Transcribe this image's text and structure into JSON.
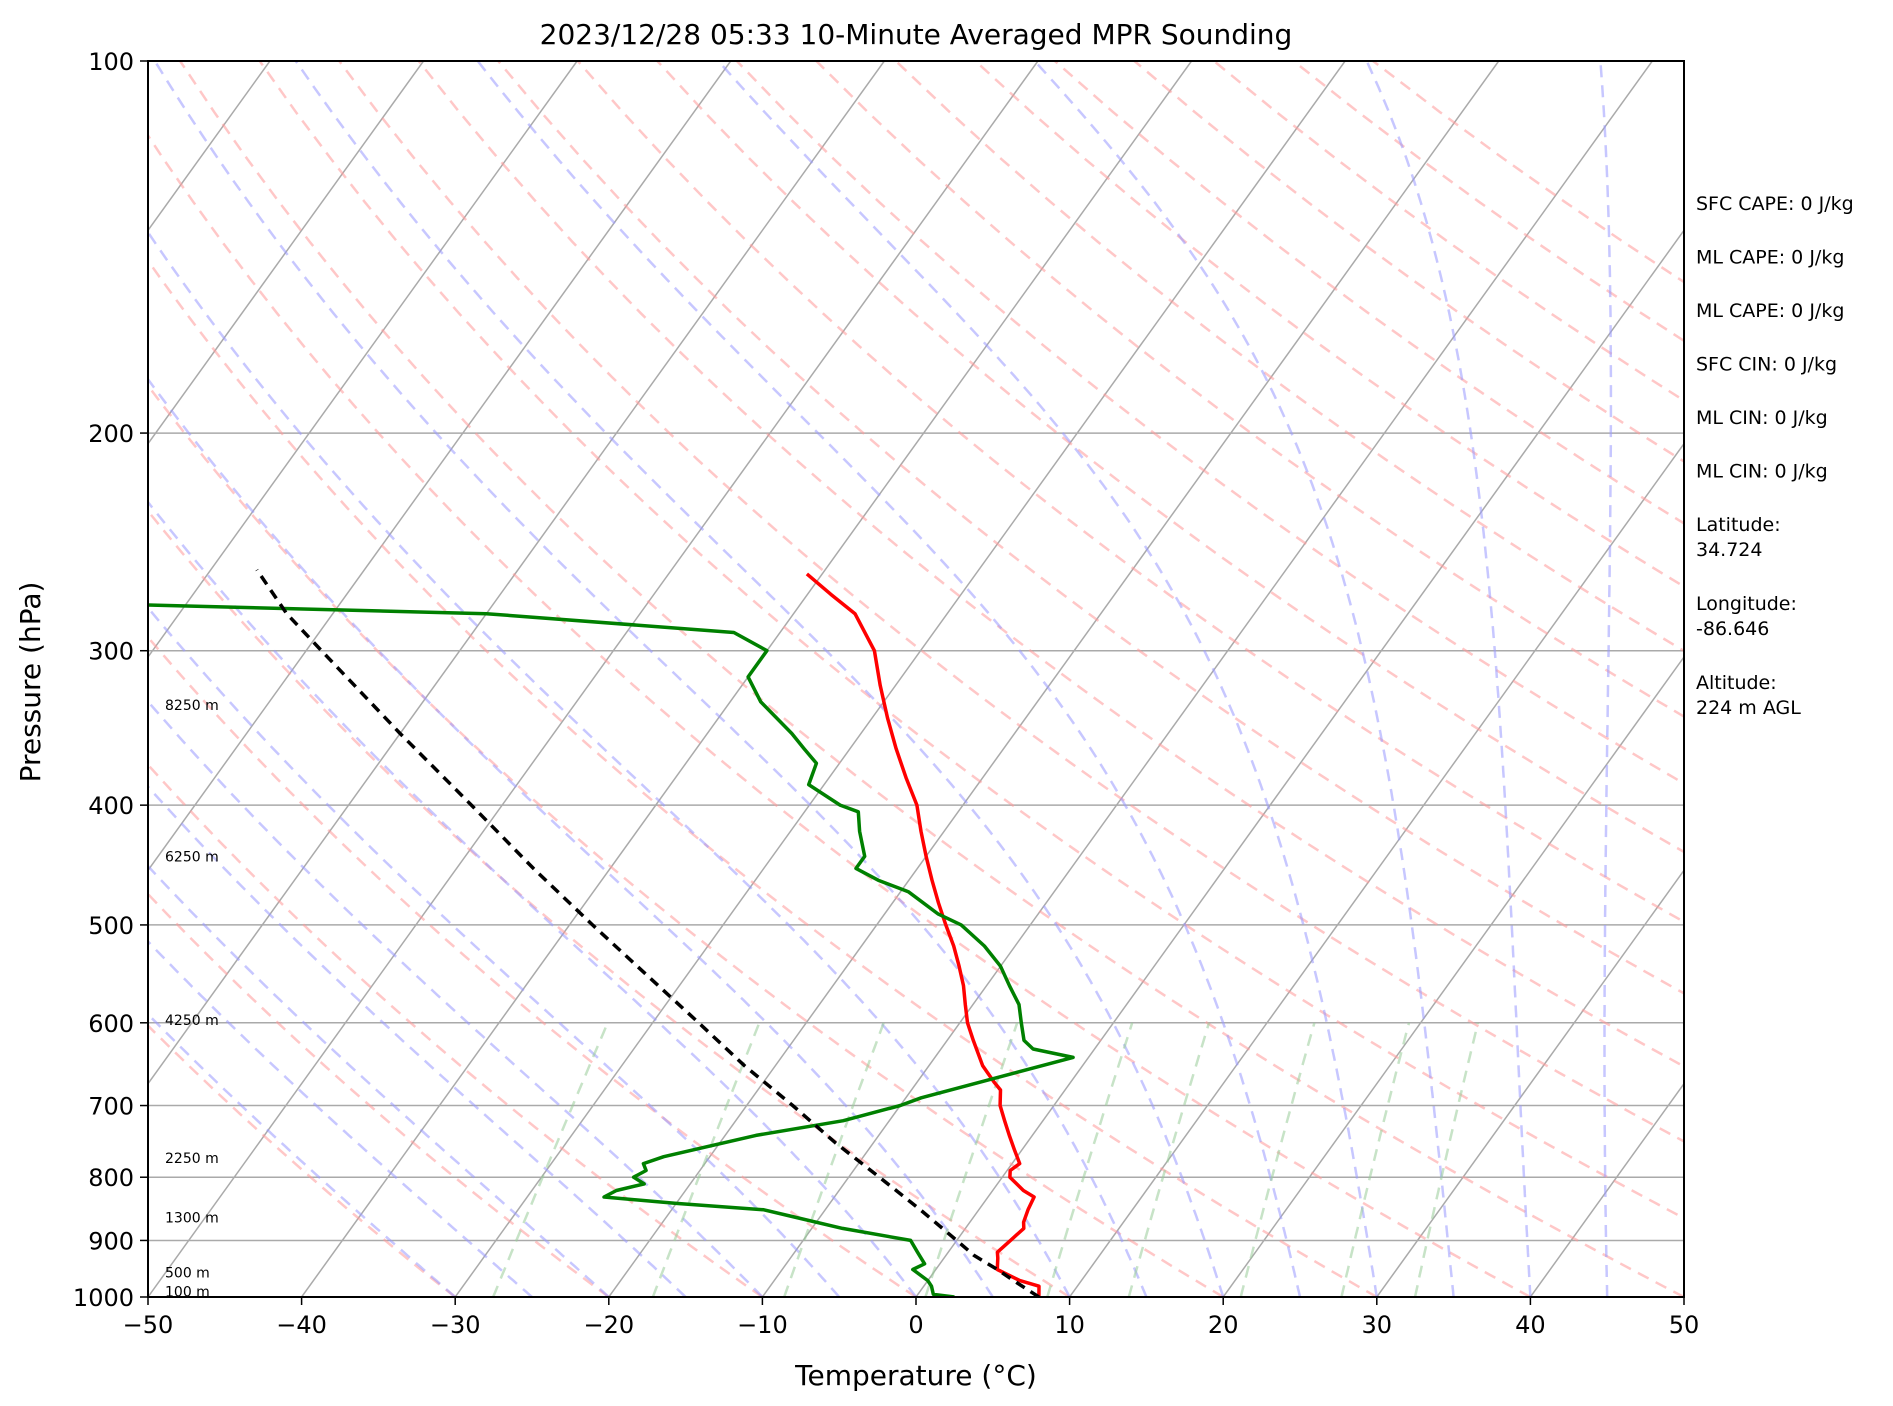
{
  "chart_data": {
    "type": "line",
    "title": "2023/12/28 05:33 10-Minute Averaged MPR Sounding",
    "xlabel": "Temperature (°C)",
    "ylabel": "Pressure (hPa)",
    "xlim": [
      -50,
      50
    ],
    "ylim": [
      1000,
      100
    ],
    "yscale": "log",
    "skew": "skew-T log-p",
    "grid": true,
    "x_ticks": [
      -50,
      -40,
      -30,
      -20,
      -10,
      0,
      10,
      20,
      30,
      40,
      50
    ],
    "y_ticks": [
      100,
      200,
      300,
      400,
      500,
      600,
      700,
      800,
      900,
      1000
    ],
    "colors": {
      "temperature": "#ff0000",
      "dewpoint": "#008000",
      "parcel": "#000000",
      "isotherms": "#aaaaaa",
      "dry_adiabats": "#ff9999",
      "moist_adiabats": "#9999ff",
      "mixing_ratio": "#99cc99"
    },
    "series": [
      {
        "key": "temperature",
        "points": [
          [
            1000,
            8.0
          ],
          [
            980,
            7.5
          ],
          [
            970,
            6.0
          ],
          [
            950,
            4.0
          ],
          [
            930,
            3.5
          ],
          [
            920,
            3.2
          ],
          [
            900,
            3.5
          ],
          [
            880,
            3.8
          ],
          [
            870,
            3.5
          ],
          [
            850,
            3.2
          ],
          [
            830,
            3.0
          ],
          [
            820,
            2.0
          ],
          [
            800,
            0.5
          ],
          [
            790,
            0.2
          ],
          [
            780,
            0.5
          ],
          [
            760,
            -0.5
          ],
          [
            740,
            -1.5
          ],
          [
            720,
            -2.5
          ],
          [
            700,
            -3.5
          ],
          [
            680,
            -4.2
          ],
          [
            670,
            -5.0
          ],
          [
            650,
            -6.5
          ],
          [
            620,
            -8.3
          ],
          [
            600,
            -9.5
          ],
          [
            580,
            -10.5
          ],
          [
            560,
            -11.5
          ],
          [
            540,
            -12.7
          ],
          [
            520,
            -14.0
          ],
          [
            500,
            -15.5
          ],
          [
            480,
            -17.0
          ],
          [
            460,
            -18.5
          ],
          [
            440,
            -20.0
          ],
          [
            420,
            -21.5
          ],
          [
            400,
            -23.0
          ],
          [
            380,
            -25.0
          ],
          [
            360,
            -27.0
          ],
          [
            340,
            -29.0
          ],
          [
            320,
            -31.0
          ],
          [
            300,
            -33.0
          ],
          [
            280,
            -36.0
          ],
          [
            270,
            -38.5
          ],
          [
            260,
            -41.0
          ]
        ]
      },
      {
        "key": "dewpoint",
        "points": [
          [
            1000,
            2.5
          ],
          [
            995,
            1.0
          ],
          [
            980,
            0.5
          ],
          [
            970,
            0.0
          ],
          [
            950,
            -1.5
          ],
          [
            940,
            -1.0
          ],
          [
            920,
            -2.0
          ],
          [
            900,
            -3.0
          ],
          [
            880,
            -8.0
          ],
          [
            860,
            -12.0
          ],
          [
            850,
            -14.0
          ],
          [
            840,
            -20.0
          ],
          [
            830,
            -25.0
          ],
          [
            820,
            -24.5
          ],
          [
            810,
            -23.0
          ],
          [
            800,
            -24.0
          ],
          [
            790,
            -23.5
          ],
          [
            780,
            -24.0
          ],
          [
            770,
            -23.0
          ],
          [
            740,
            -18.0
          ],
          [
            720,
            -13.0
          ],
          [
            700,
            -10.0
          ],
          [
            690,
            -9.0
          ],
          [
            640,
            -1.0
          ],
          [
            630,
            -4.0
          ],
          [
            620,
            -5.0
          ],
          [
            600,
            -6.0
          ],
          [
            580,
            -7.0
          ],
          [
            560,
            -8.5
          ],
          [
            540,
            -10.0
          ],
          [
            520,
            -12.0
          ],
          [
            500,
            -14.5
          ],
          [
            490,
            -16.5
          ],
          [
            470,
            -19.5
          ],
          [
            460,
            -22.0
          ],
          [
            450,
            -24.0
          ],
          [
            440,
            -24.0
          ],
          [
            420,
            -25.5
          ],
          [
            405,
            -26.5
          ],
          [
            400,
            -28.0
          ],
          [
            385,
            -31.0
          ],
          [
            370,
            -31.5
          ],
          [
            360,
            -33.0
          ],
          [
            350,
            -34.5
          ],
          [
            330,
            -38.0
          ],
          [
            315,
            -40.0
          ],
          [
            300,
            -40.0
          ],
          [
            290,
            -43.0
          ],
          [
            280,
            -60.0
          ],
          [
            275,
            -85.0
          ]
        ]
      },
      {
        "key": "parcel",
        "points": [
          [
            1000,
            8.0
          ],
          [
            975,
            6.0
          ],
          [
            950,
            4.0
          ],
          [
            925,
            1.8
          ],
          [
            900,
            0.0
          ],
          [
            850,
            -3.8
          ],
          [
            800,
            -8.0
          ],
          [
            750,
            -12.5
          ],
          [
            700,
            -17.0
          ],
          [
            650,
            -22.0
          ],
          [
            600,
            -27.0
          ],
          [
            550,
            -32.5
          ],
          [
            500,
            -38.5
          ],
          [
            450,
            -45.0
          ],
          [
            400,
            -52.0
          ],
          [
            350,
            -60.0
          ],
          [
            300,
            -69.0
          ],
          [
            280,
            -73.0
          ],
          [
            258,
            -77.0
          ]
        ]
      }
    ],
    "height_labels": [
      {
        "pressure": 332,
        "text": "8250 m"
      },
      {
        "pressure": 440,
        "text": "6250 m"
      },
      {
        "pressure": 597,
        "text": "4250 m"
      },
      {
        "pressure": 772,
        "text": "2250 m"
      },
      {
        "pressure": 862,
        "text": "1300 m"
      },
      {
        "pressure": 955,
        "text": "500 m"
      },
      {
        "pressure": 990,
        "text": "100 m"
      }
    ],
    "side_panel": [
      "SFC CAPE: 0 J/kg",
      "ML CAPE: 0 J/kg",
      "ML CAPE: 0 J/kg",
      "SFC CIN: 0 J/kg",
      "ML CIN: 0 J/kg",
      "ML CIN: 0 J/kg",
      "Latitude:\n34.724",
      "Longitude:\n-86.646",
      "Altitude:\n224 m AGL"
    ]
  }
}
